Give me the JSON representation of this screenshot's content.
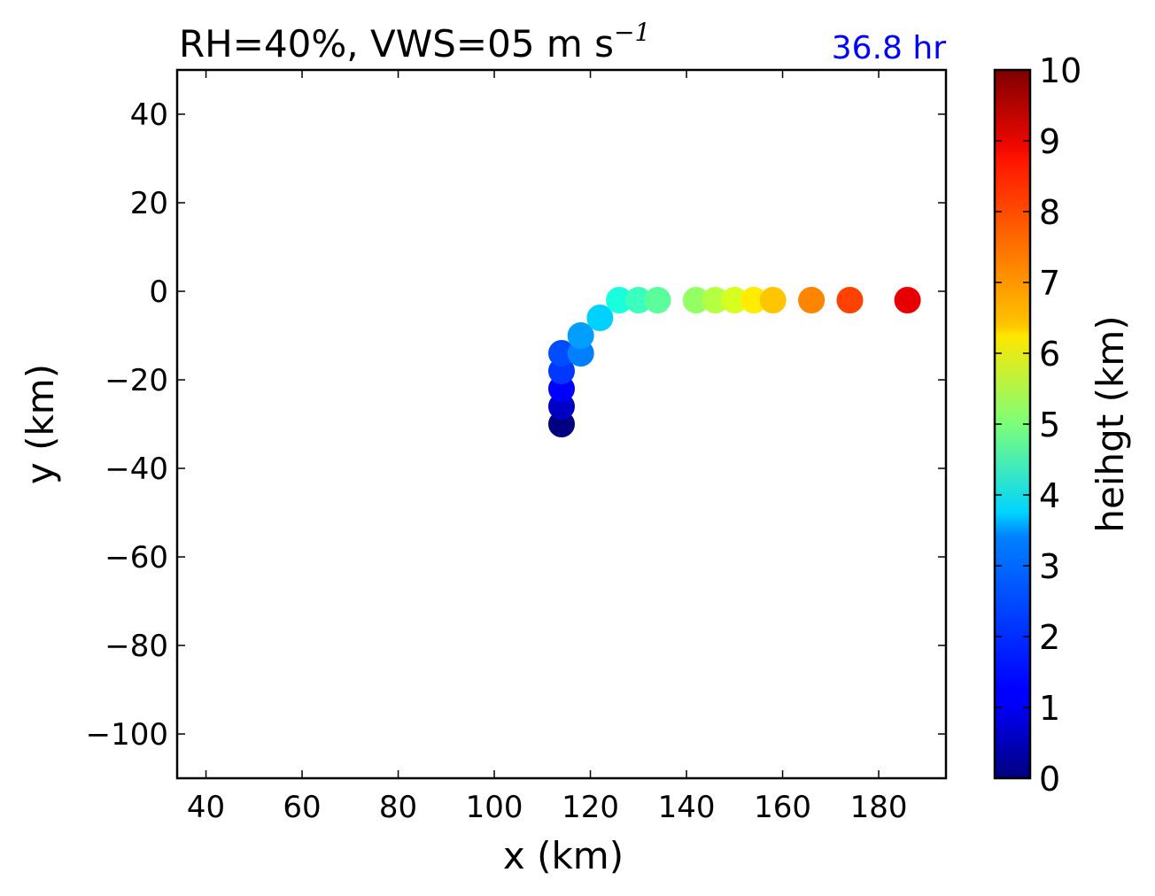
{
  "chart_data": {
    "type": "scatter",
    "title": "RH=40%, VWS=05 m s",
    "title_superscript": "−1",
    "annotation": "36.8 hr",
    "annotation_color": "#0000ff",
    "xlabel": "x (km)",
    "ylabel": "y (km)",
    "xlim": [
      34,
      194
    ],
    "ylim": [
      -110,
      50
    ],
    "xticks": [
      40,
      60,
      80,
      100,
      120,
      140,
      160,
      180
    ],
    "yticks": [
      40,
      20,
      0,
      -20,
      -40,
      -60,
      -80,
      -100
    ],
    "ytick_labels": [
      "40",
      "20",
      "0",
      "−20",
      "−40",
      "−60",
      "−80",
      "−100"
    ],
    "grid": false,
    "colormap": "jet",
    "colorbar": {
      "label": "heihgt (km)",
      "range": [
        0,
        10
      ],
      "ticks": [
        "0",
        "1",
        "2",
        "3",
        "4",
        "5",
        "6",
        "7",
        "8",
        "9",
        "10"
      ]
    },
    "points": [
      {
        "x": 114,
        "y": -30,
        "height": 0.0
      },
      {
        "x": 114,
        "y": -26,
        "height": 0.6
      },
      {
        "x": 114,
        "y": -22,
        "height": 1.2
      },
      {
        "x": 114,
        "y": -18,
        "height": 1.8
      },
      {
        "x": 114,
        "y": -14,
        "height": 2.0
      },
      {
        "x": 118,
        "y": -14,
        "height": 2.5
      },
      {
        "x": 118,
        "y": -10,
        "height": 2.8
      },
      {
        "x": 122,
        "y": -6,
        "height": 3.3
      },
      {
        "x": 126,
        "y": -2,
        "height": 3.8
      },
      {
        "x": 130,
        "y": -2,
        "height": 4.2
      },
      {
        "x": 134,
        "y": -2,
        "height": 4.6
      },
      {
        "x": 142,
        "y": -2,
        "height": 5.3
      },
      {
        "x": 146,
        "y": -2,
        "height": 5.7
      },
      {
        "x": 150,
        "y": -2,
        "height": 6.1
      },
      {
        "x": 154,
        "y": -2,
        "height": 6.6
      },
      {
        "x": 158,
        "y": -2,
        "height": 7.0
      },
      {
        "x": 166,
        "y": -2,
        "height": 7.7
      },
      {
        "x": 174,
        "y": -2,
        "height": 8.4
      },
      {
        "x": 186,
        "y": -2,
        "height": 9.1
      }
    ]
  }
}
